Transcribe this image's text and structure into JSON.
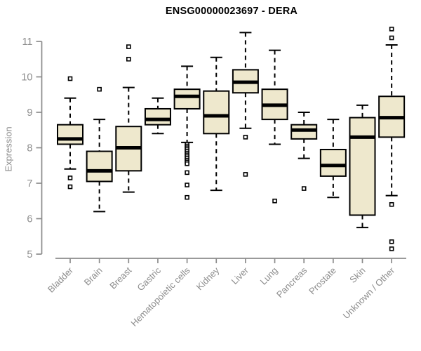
{
  "page": {
    "background": "#ffffff"
  },
  "chart_data": {
    "type": "boxplot",
    "title": "ENSG00000023697 - DERA",
    "ylabel": "Expression",
    "xlabel": "",
    "ylim": [
      5,
      11.45
    ],
    "yticks": [
      5,
      6,
      7,
      8,
      9,
      10,
      11
    ],
    "grid": false,
    "legend": null,
    "categories": [
      "Bladder",
      "Brain",
      "Breast",
      "Gastric",
      "Hematopoietic cells",
      "Kidney",
      "Liver",
      "Lung",
      "Pancreas",
      "Prostate",
      "Skin",
      "Unknown / Other"
    ],
    "boxes": [
      {
        "category": "Bladder",
        "whislo": 7.4,
        "q1": 8.1,
        "med": 8.25,
        "q3": 8.65,
        "whishi": 9.4,
        "outliers": [
          9.95,
          7.15,
          6.9
        ]
      },
      {
        "category": "Brain",
        "whislo": 6.2,
        "q1": 7.05,
        "med": 7.35,
        "q3": 7.9,
        "whishi": 8.8,
        "outliers": [
          9.65
        ]
      },
      {
        "category": "Breast",
        "whislo": 6.75,
        "q1": 7.35,
        "med": 8.0,
        "q3": 8.6,
        "whishi": 9.7,
        "outliers": [
          10.85,
          10.5
        ]
      },
      {
        "category": "Gastric",
        "whislo": 8.4,
        "q1": 8.65,
        "med": 8.8,
        "q3": 9.1,
        "whishi": 9.4,
        "outliers": []
      },
      {
        "category": "Hematopoietic cells",
        "whislo": 8.15,
        "q1": 9.1,
        "med": 9.45,
        "q3": 9.65,
        "whishi": 10.3,
        "outliers": [
          8.1,
          8.05,
          8.0,
          7.95,
          7.9,
          7.85,
          7.8,
          7.75,
          7.7,
          7.65,
          7.6,
          7.55,
          7.3,
          6.95,
          6.6
        ]
      },
      {
        "category": "Kidney",
        "whislo": 6.8,
        "q1": 8.4,
        "med": 8.9,
        "q3": 9.6,
        "whishi": 10.55,
        "outliers": []
      },
      {
        "category": "Liver",
        "whislo": 8.55,
        "q1": 9.55,
        "med": 9.85,
        "q3": 10.2,
        "whishi": 11.25,
        "outliers": [
          8.3,
          7.25
        ]
      },
      {
        "category": "Lung",
        "whislo": 8.1,
        "q1": 8.8,
        "med": 9.2,
        "q3": 9.65,
        "whishi": 10.75,
        "outliers": [
          6.5
        ]
      },
      {
        "category": "Pancreas",
        "whislo": 7.7,
        "q1": 8.25,
        "med": 8.5,
        "q3": 8.65,
        "whishi": 9.0,
        "outliers": [
          6.85
        ]
      },
      {
        "category": "Prostate",
        "whislo": 6.6,
        "q1": 7.2,
        "med": 7.5,
        "q3": 7.95,
        "whishi": 8.8,
        "outliers": []
      },
      {
        "category": "Skin",
        "whislo": 5.75,
        "q1": 6.1,
        "med": 8.3,
        "q3": 8.85,
        "whishi": 9.2,
        "outliers": []
      },
      {
        "category": "Unknown / Other",
        "whislo": 6.65,
        "q1": 8.3,
        "med": 8.85,
        "q3": 9.45,
        "whishi": 10.9,
        "outliers": [
          11.35,
          11.1,
          6.4,
          5.35,
          5.15
        ]
      }
    ],
    "colors": {
      "box_fill": "#EEE8CD",
      "box_border": "#000000",
      "median": "#000000",
      "whisker": "#000000",
      "outlier_fill": "#ffffff",
      "axis": "#8c8c8c",
      "tick_label": "#8c8c8c",
      "title": "#000000"
    }
  }
}
